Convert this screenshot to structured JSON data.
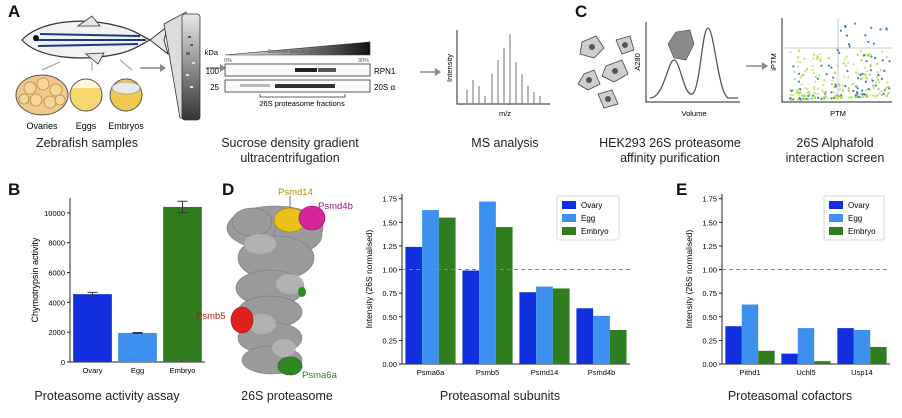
{
  "panel_labels": {
    "a": "A",
    "b": "B",
    "c": "C",
    "d": "D",
    "e": "E"
  },
  "panel_a": {
    "samples": [
      "Ovaries",
      "Eggs",
      "Embryos"
    ],
    "caption_samples": "Zebrafish samples",
    "gradient_label": "Sucrose density gradient",
    "gradient_start": "0%",
    "gradient_end": "30%",
    "kda": "kDa",
    "mw_100": "100",
    "mw_25": "25",
    "band_rpn1": "RPN1",
    "band_20s": "20S α",
    "fractions_label": "26S proteasome fractions",
    "caption_sucrose_1": "Sucrose density gradient",
    "caption_sucrose_2": "ultracentrifugation",
    "ms_ylabel": "Intensity",
    "ms_xlabel": "m/z",
    "caption_ms": "MS analysis"
  },
  "panel_c": {
    "a280": "A280",
    "volume": "Volume",
    "iptm": "iPTM",
    "ptm": "PTM",
    "caption_hek_1": "HEK293 26S proteasome",
    "caption_hek_2": "affinity purification",
    "caption_af_1": "26S Alphafold",
    "caption_af_2": "interaction screen"
  },
  "panel_d": {
    "labels": {
      "psmd14": "Psmd14",
      "psmd4b": "Psmd4b",
      "psmb5": "Psmb5",
      "psma6a": "Psma6a"
    },
    "caption_structure": "26S proteasome",
    "caption_subunits": "Proteasomal subunits"
  },
  "panel_b_caption": "Proteasome activity assay",
  "panel_e_caption": "Proteasomal cofactors",
  "colors": {
    "ovary": "#1030e0",
    "egg": "#3d8ff0",
    "embryo": "#2f7d1f",
    "psmd14": "#e8c21a",
    "psmd4b": "#d6249a",
    "psmb5": "#e0201a",
    "psma6a": "#2f8a24"
  },
  "chart_data": [
    {
      "id": "B",
      "type": "bar",
      "categories": [
        "Ovary",
        "Egg",
        "Embryo"
      ],
      "values": [
        4550,
        1950,
        10400
      ],
      "errors": [
        120,
        30,
        380
      ],
      "ylabel": "Chymotrypsin activity",
      "xlabel": "",
      "ylim": [
        0,
        11000
      ],
      "yticks": [
        0,
        2000,
        4000,
        6000,
        8000,
        10000
      ],
      "colors": [
        "#1030e0",
        "#3d8ff0",
        "#2f7d1f"
      ]
    },
    {
      "id": "D",
      "type": "bar",
      "categories": [
        "Psma6a",
        "Psmb5",
        "Psmd14",
        "Psmd4b"
      ],
      "series": [
        {
          "name": "Ovary",
          "values": [
            1.24,
            0.99,
            0.76,
            0.59
          ]
        },
        {
          "name": "Egg",
          "values": [
            1.63,
            1.72,
            0.82,
            0.51
          ]
        },
        {
          "name": "Embryo",
          "values": [
            1.55,
            1.45,
            0.8,
            0.36
          ]
        }
      ],
      "ylabel": "Intensity (26S normalised)",
      "xlabel": "",
      "ylim": [
        0,
        1.8
      ],
      "yticks": [
        "0.00",
        "0.25",
        "0.50",
        "0.75",
        "1.00",
        "1.25",
        "1.50",
        "1.75"
      ],
      "reference_line": 1.0,
      "legend": "top-right"
    },
    {
      "id": "E",
      "type": "bar",
      "categories": [
        "Pithd1",
        "Uchl5",
        "Usp14"
      ],
      "series": [
        {
          "name": "Ovary",
          "values": [
            0.4,
            0.11,
            0.38
          ]
        },
        {
          "name": "Egg",
          "values": [
            0.63,
            0.38,
            0.36
          ]
        },
        {
          "name": "Embryo",
          "values": [
            0.14,
            0.03,
            0.18
          ]
        }
      ],
      "ylabel": "Intensity (26S normalised)",
      "xlabel": "",
      "ylim": [
        0,
        1.8
      ],
      "yticks": [
        "0.00",
        "0.25",
        "0.50",
        "0.75",
        "1.00",
        "1.25",
        "1.50",
        "1.75"
      ],
      "reference_line": 1.0,
      "legend": "top-right"
    }
  ]
}
